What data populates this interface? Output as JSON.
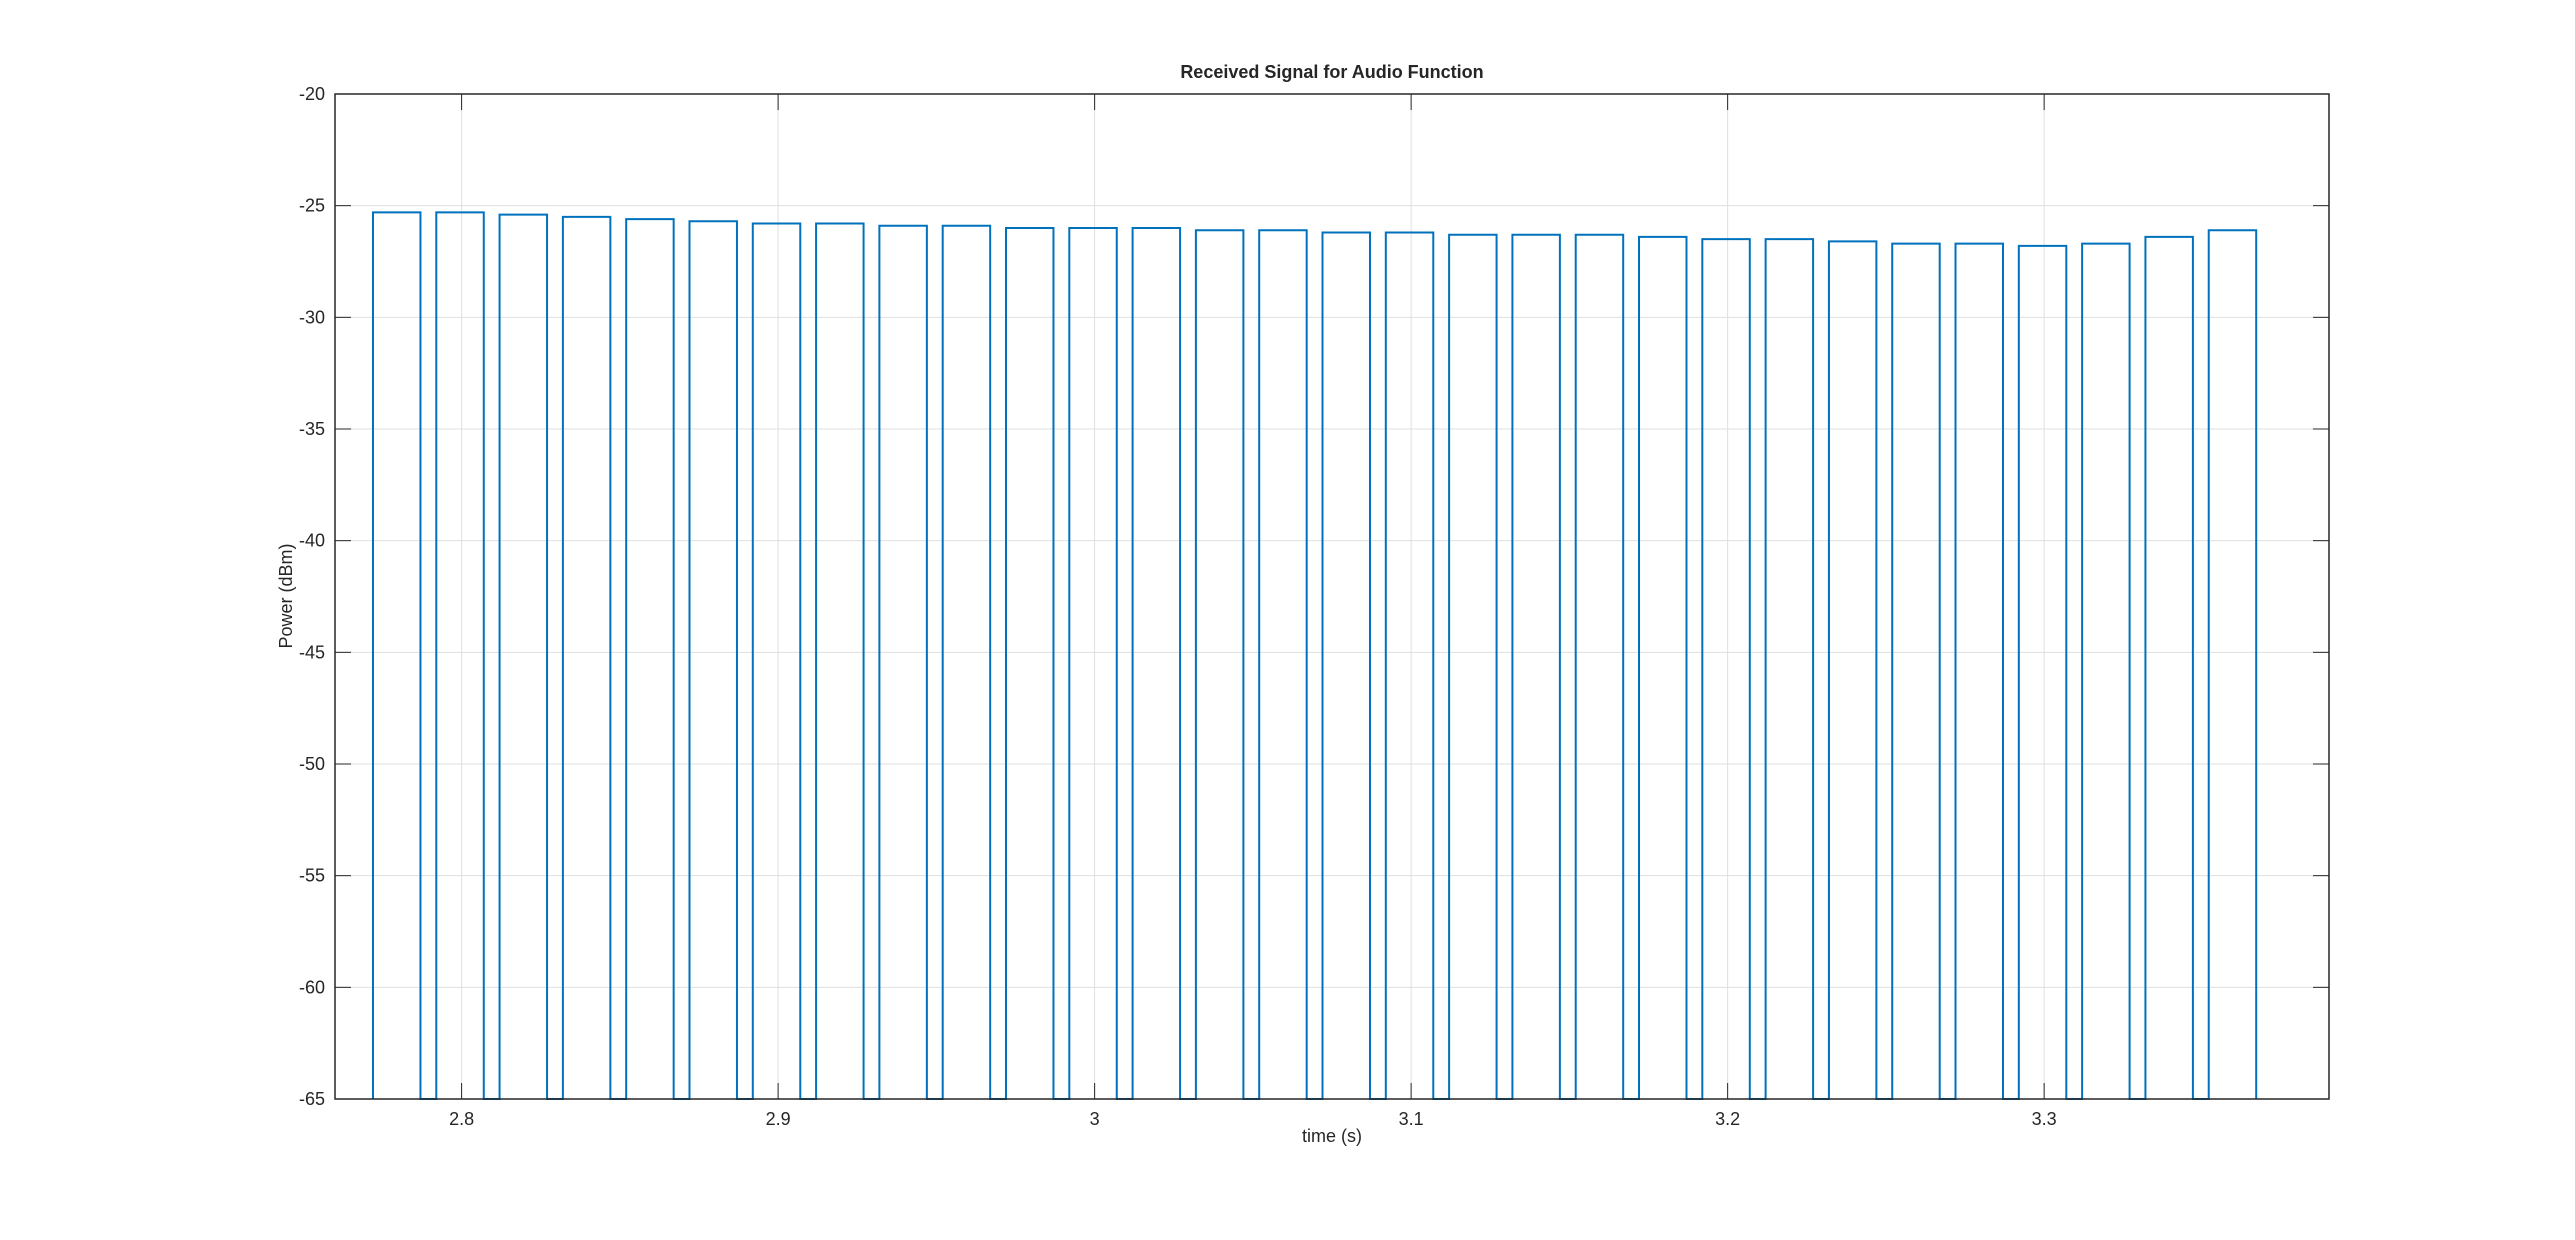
{
  "chart_data": {
    "type": "line",
    "title": "Received Signal for Audio Function",
    "xlabel": "time (s)",
    "ylabel": "Power (dBm)",
    "color": "#0072bd",
    "grid": true,
    "x": [
      2.772,
      2.772,
      2.787,
      2.787,
      2.792,
      2.792,
      2.807,
      2.807,
      2.812,
      2.812,
      2.827,
      2.827,
      2.832,
      2.832,
      2.847,
      2.847,
      2.852,
      2.852,
      2.867,
      2.867,
      2.872,
      2.872,
      2.887,
      2.887,
      2.892,
      2.892,
      2.907,
      2.907,
      2.912,
      2.912,
      2.927,
      2.927,
      2.932,
      2.932,
      2.947,
      2.947,
      2.952,
      2.952,
      2.967,
      2.967,
      2.972,
      2.972,
      2.987,
      2.987,
      2.992,
      2.992,
      3.007,
      3.007,
      3.012,
      3.012,
      3.027,
      3.027,
      3.032,
      3.032,
      3.047,
      3.047,
      3.052,
      3.052,
      3.067,
      3.067,
      3.072,
      3.072,
      3.087,
      3.087,
      3.092,
      3.092,
      3.107,
      3.107,
      3.112,
      3.112,
      3.127,
      3.127,
      3.132,
      3.132,
      3.147,
      3.147,
      3.152,
      3.152,
      3.167,
      3.167,
      3.172,
      3.172,
      3.187,
      3.187,
      3.192,
      3.192,
      3.207,
      3.207,
      3.212,
      3.212,
      3.227,
      3.227,
      3.232,
      3.232,
      3.247,
      3.247,
      3.252,
      3.252,
      3.267,
      3.267,
      3.272,
      3.272,
      3.287,
      3.287,
      3.292,
      3.292,
      3.307,
      3.307,
      3.312,
      3.312,
      3.327,
      3.327,
      3.332,
      3.332,
      3.347,
      3.347,
      3.352,
      3.352,
      3.367,
      3.367
    ],
    "values": [
      -65,
      -25.3,
      -25.3,
      -65,
      -65,
      -25.3,
      -25.3,
      -65,
      -65,
      -25.4,
      -25.4,
      -65,
      -65,
      -25.5,
      -25.5,
      -65,
      -65,
      -25.6,
      -25.6,
      -65,
      -65,
      -25.7,
      -25.7,
      -65,
      -65,
      -25.8,
      -25.8,
      -65,
      -65,
      -25.8,
      -25.8,
      -65,
      -65,
      -25.9,
      -25.9,
      -65,
      -65,
      -25.9,
      -25.9,
      -65,
      -65,
      -26.0,
      -26.0,
      -65,
      -65,
      -26.0,
      -26.0,
      -65,
      -65,
      -26.0,
      -26.0,
      -65,
      -65,
      -26.1,
      -26.1,
      -65,
      -65,
      -26.1,
      -26.1,
      -65,
      -65,
      -26.2,
      -26.2,
      -65,
      -65,
      -26.2,
      -26.2,
      -65,
      -65,
      -26.3,
      -26.3,
      -65,
      -65,
      -26.3,
      -26.3,
      -65,
      -65,
      -26.3,
      -26.3,
      -65,
      -65,
      -26.4,
      -26.4,
      -65,
      -65,
      -26.5,
      -26.5,
      -65,
      -65,
      -26.5,
      -26.5,
      -65,
      -65,
      -26.6,
      -26.6,
      -65,
      -65,
      -26.7,
      -26.7,
      -65,
      -65,
      -26.7,
      -26.7,
      -65,
      -65,
      -26.8,
      -26.8,
      -65,
      -65,
      -26.7,
      -26.7,
      -65,
      -65,
      -26.4,
      -26.4,
      -65,
      -65,
      -26.1,
      -26.1,
      -65
    ],
    "xlim": [
      2.76,
      3.39
    ],
    "ylim": [
      -65,
      -20
    ],
    "xticks": [
      2.8,
      2.9,
      3,
      3.1,
      3.2,
      3.3
    ],
    "yticks": [
      -65,
      -60,
      -55,
      -50,
      -45,
      -40,
      -35,
      -30,
      -25,
      -20
    ]
  }
}
